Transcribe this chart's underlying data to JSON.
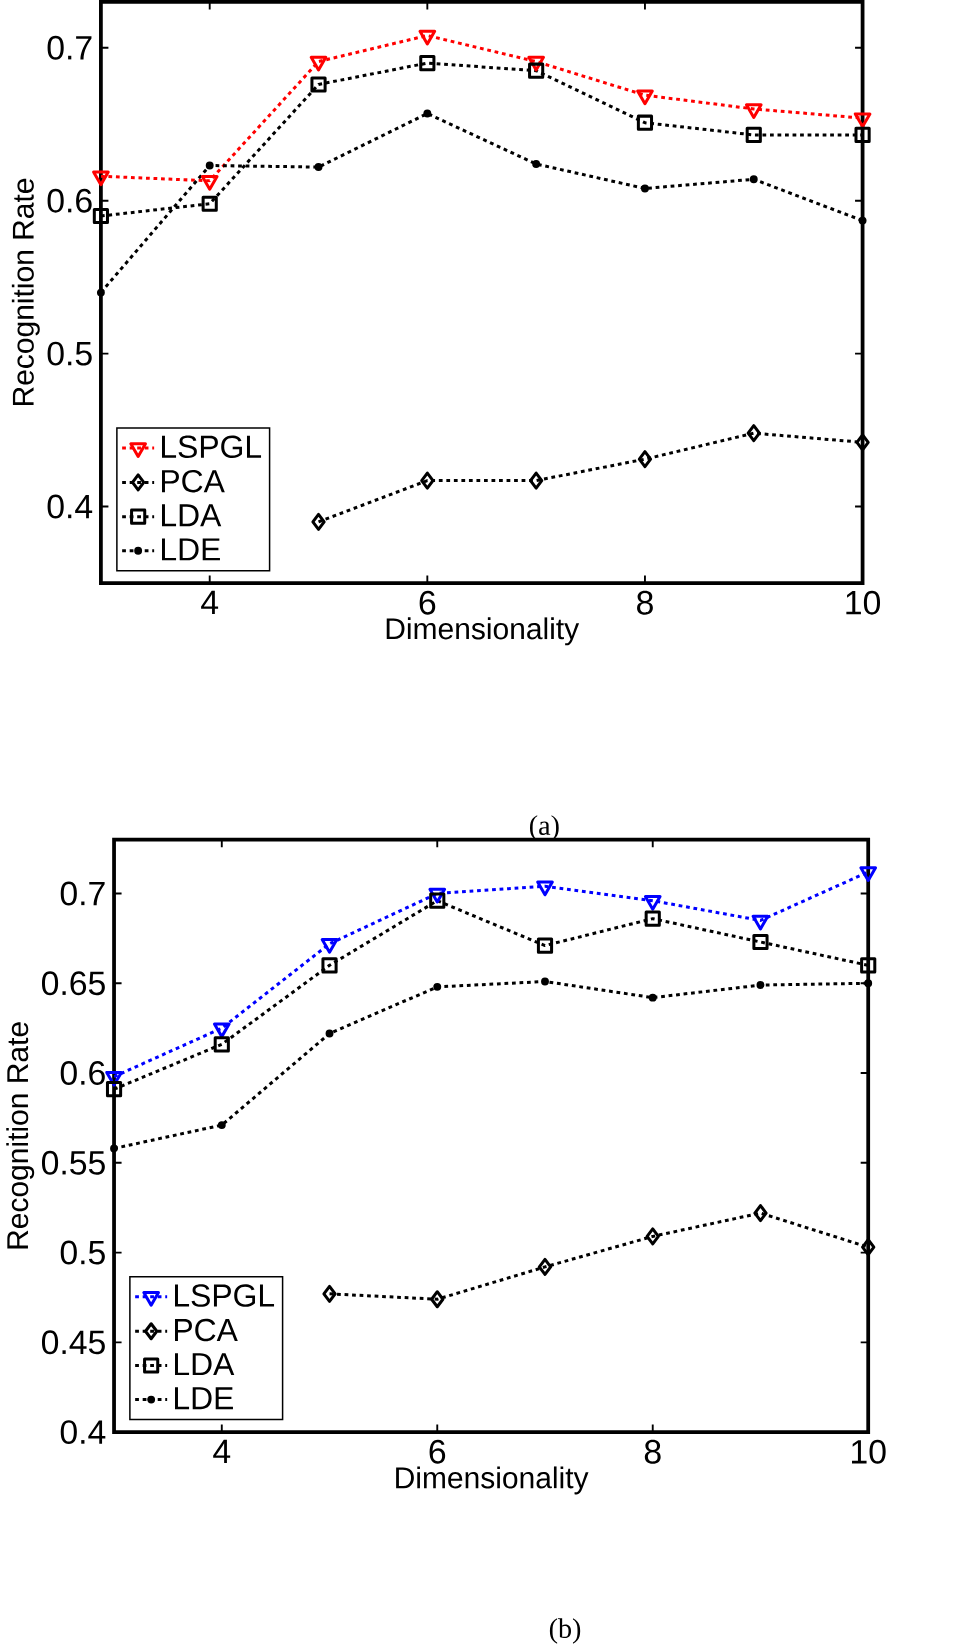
{
  "chart_data": [
    {
      "type": "line",
      "x": [
        3,
        4,
        5,
        6,
        7,
        8,
        9,
        10
      ],
      "xlabel": "Dimensionality",
      "ylabel": "Recognition Rate",
      "xlim": [
        3,
        10
      ],
      "ylim": [
        0.35,
        0.73
      ],
      "xticks": [
        4,
        6,
        8,
        10
      ],
      "yticks": [
        0.4,
        0.5,
        0.6,
        0.7
      ],
      "legend": "bottom left",
      "grid": false,
      "line_style": "dotted",
      "annotations": [
        "(a)"
      ],
      "series": [
        {
          "name": "LSPGL",
          "color": "#ff0000",
          "marker": "triangle",
          "values": [
            0.616,
            0.613,
            0.691,
            0.708,
            0.691,
            0.669,
            0.66,
            0.654
          ]
        },
        {
          "name": "PCA",
          "color": "#000000",
          "marker": "diamond",
          "values": [
            null,
            null,
            0.39,
            0.417,
            0.417,
            0.431,
            0.448,
            0.442
          ]
        },
        {
          "name": "LDA",
          "color": "#000000",
          "marker": "square",
          "values": [
            0.59,
            0.598,
            0.676,
            0.69,
            0.685,
            0.651,
            0.643,
            0.643
          ]
        },
        {
          "name": "LDE",
          "color": "#000000",
          "marker": "circle",
          "values": [
            0.54,
            0.623,
            0.622,
            0.657,
            0.624,
            0.608,
            0.614,
            0.587
          ]
        }
      ]
    },
    {
      "type": "line",
      "x": [
        3,
        4,
        5,
        6,
        7,
        8,
        9,
        10
      ],
      "xlabel": "Dimensionality",
      "ylabel": "Recognition Rate",
      "xlim": [
        3,
        10
      ],
      "ylim": [
        0.4,
        0.73
      ],
      "xticks": [
        4,
        6,
        8,
        10
      ],
      "yticks": [
        0.4,
        0.45,
        0.5,
        0.55,
        0.6,
        0.65,
        0.7
      ],
      "legend": "bottom left",
      "grid": false,
      "line_style": "dotted",
      "annotations": [
        "(b)"
      ],
      "series": [
        {
          "name": "LSPGL",
          "color": "#0000ff",
          "marker": "triangle",
          "values": [
            0.598,
            0.625,
            0.672,
            0.7,
            0.704,
            0.696,
            0.685,
            0.712
          ]
        },
        {
          "name": "PCA",
          "color": "#000000",
          "marker": "diamond",
          "values": [
            null,
            null,
            0.477,
            0.474,
            0.492,
            0.509,
            0.522,
            0.503
          ]
        },
        {
          "name": "LDA",
          "color": "#000000",
          "marker": "square",
          "values": [
            0.591,
            0.616,
            0.66,
            0.696,
            0.671,
            0.686,
            0.673,
            0.66
          ]
        },
        {
          "name": "LDE",
          "color": "#000000",
          "marker": "circle",
          "values": [
            0.558,
            0.571,
            0.622,
            0.648,
            0.651,
            0.642,
            0.649,
            0.65
          ]
        }
      ]
    }
  ]
}
